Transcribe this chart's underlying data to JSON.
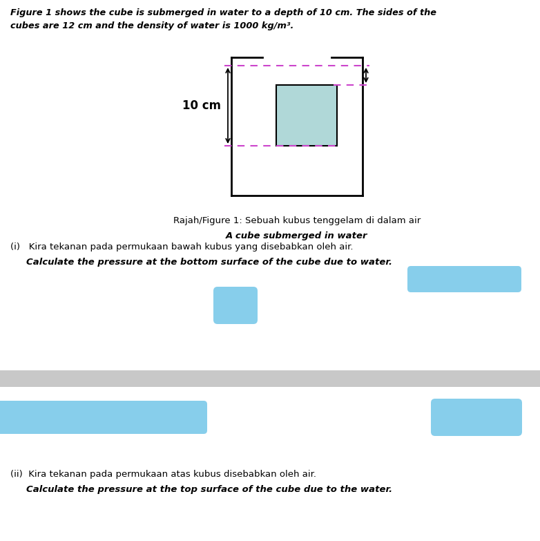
{
  "title_line1": "Figure 1 shows the cube is submerged in water to a depth of 10 cm. The sides of the",
  "title_line2": "cubes are 12 cm and the density of water is 1000 kg/m³.",
  "depth_label": "10 cm",
  "caption_line1": "Rajah/Figure 1: Sebuah kubus tenggelam di dalam air",
  "caption_line2": "A cube submerged in water",
  "question_i_malay": "(i)   Kira tekanan pada permukaan bawah kubus yang disebabkan oleh air.",
  "question_i_english": "Calculate the pressure at the bottom surface of the cube due to water.",
  "question_ii_malay": "(ii)  Kira tekanan pada permukaan atas kubus disebabkan oleh air.",
  "question_ii_english": "Calculate the pressure at the top surface of the cube due to the water.",
  "background_color": "#ffffff",
  "text_color": "#000000",
  "cube_fill": "#b0d8d8",
  "cube_edge": "#000000",
  "container_color": "#000000",
  "dashed_color": "#cc44cc",
  "arrow_color": "#000000",
  "redacted_color": "#87CEEB",
  "separator_color": "#c8c8c8"
}
